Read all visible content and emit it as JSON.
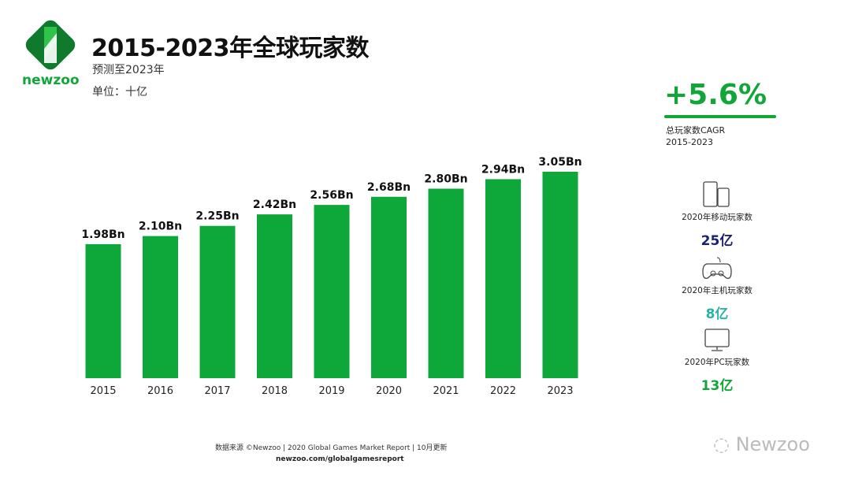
{
  "header": {
    "title": "2015-2023年全球玩家数",
    "subtitle": "预测至2023年",
    "unit": "单位：十亿",
    "logo": "newzoo"
  },
  "chart_data": {
    "type": "bar",
    "title": "2015-2023年全球玩家数",
    "categories": [
      "2015",
      "2016",
      "2017",
      "2018",
      "2019",
      "2020",
      "2021",
      "2022",
      "2023"
    ],
    "values": [
      1.98,
      2.1,
      2.25,
      2.42,
      2.56,
      2.68,
      2.8,
      2.94,
      3.05
    ],
    "data_labels": [
      "1.98Bn",
      "2.10Bn",
      "2.25Bn",
      "2.42Bn",
      "2.56Bn",
      "2.68Bn",
      "2.80Bn",
      "2.94Bn",
      "3.05Bn"
    ],
    "ylim": [
      0,
      3.05
    ],
    "grid": false,
    "color": "#0ea83a"
  },
  "side": {
    "cagr": {
      "value": "+5.6%",
      "label": "总玩家数CAGR",
      "period": "2015-2023"
    },
    "stats": [
      {
        "icon": "mobile-icon",
        "label": "2020年移动玩家数",
        "value": "25亿",
        "color": "#1a1f6e"
      },
      {
        "icon": "gamepad-icon",
        "label": "2020年主机玩家数",
        "value": "8亿",
        "color": "#2bb3a6"
      },
      {
        "icon": "monitor-icon",
        "label": "2020年PC玩家数",
        "value": "13亿",
        "color": "#12a538"
      }
    ]
  },
  "footer": {
    "source": "数据来源 ©Newzoo | 2020 Global Games Market Report | 10月更新",
    "url": "newzoo.com/globalgamesreport",
    "watermark": "Newzoo"
  }
}
